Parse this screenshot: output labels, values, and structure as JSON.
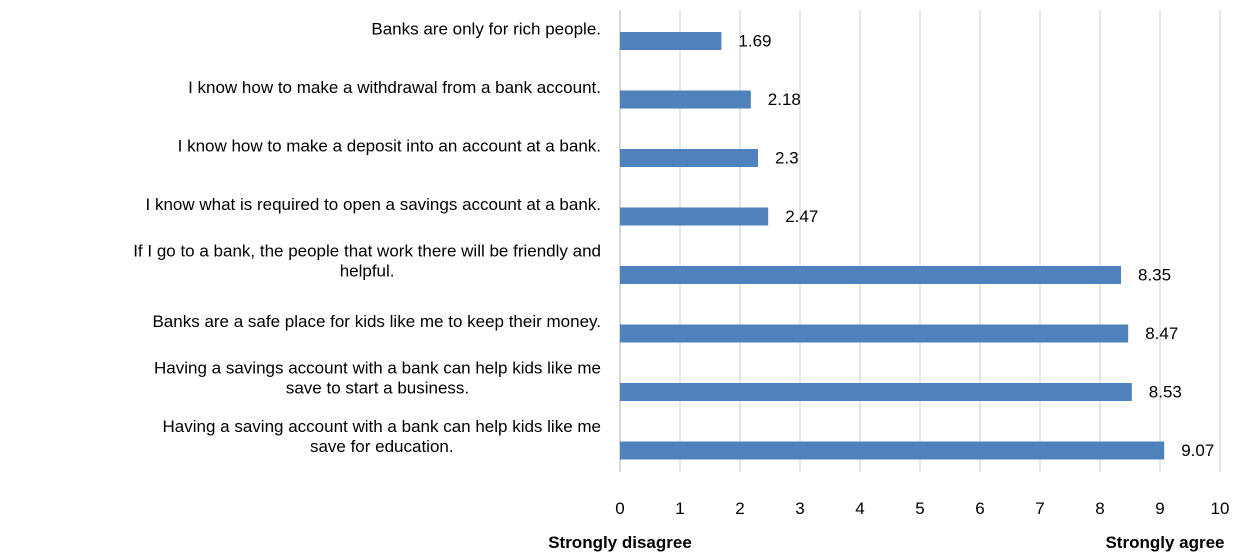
{
  "chart_data": {
    "type": "bar",
    "orientation": "horizontal",
    "categories": [
      "Banks are only for rich people.",
      "I know how to make a withdrawal from a bank account.",
      "I know how to make a deposit into an account at a bank.",
      "I know what is required to open a savings account at a bank.",
      "If I go to a bank, the people that work there will be friendly and helpful.",
      "Banks are a safe place for kids like me to keep their money.",
      "Having a savings account with a bank can help kids like me save to start a business.",
      "Having a saving account with a bank can help kids like me save for education."
    ],
    "category_lines": [
      [
        "Banks are only for rich people."
      ],
      [
        "I know how to make a withdrawal from a bank account."
      ],
      [
        "I know how to make a deposit into an account at a bank."
      ],
      [
        "I know what is required to open a savings account at a bank."
      ],
      [
        "If I go to a bank, the people that work there will be friendly and",
        "helpful."
      ],
      [
        "Banks are a safe place for kids like me to keep their money."
      ],
      [
        "Having a savings account with a bank can help kids like me",
        "save to start a business."
      ],
      [
        "Having a saving account with a bank can help kids like me",
        "save for education."
      ]
    ],
    "values": [
      1.69,
      2.18,
      2.3,
      2.47,
      8.35,
      8.47,
      8.53,
      9.07
    ],
    "value_labels": [
      "1.69",
      "2.18",
      "2.3",
      "2.47",
      "8.35",
      "8.47",
      "8.53",
      "9.07"
    ],
    "xlim": [
      0,
      10
    ],
    "xticks": [
      0,
      1,
      2,
      3,
      4,
      5,
      6,
      7,
      8,
      9,
      10
    ],
    "xtick_labels": [
      "0",
      "1",
      "2",
      "3",
      "4",
      "5",
      "6",
      "7",
      "8",
      "9",
      "10"
    ],
    "scale_min_label": "Strongly disagree",
    "scale_max_label": "Strongly agree",
    "bar_color": "#4f81bd",
    "grid": true,
    "legend": "none"
  }
}
